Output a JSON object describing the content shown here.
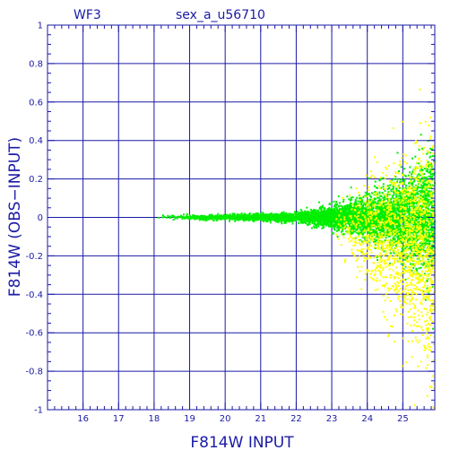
{
  "chart_data": {
    "type": "scatter",
    "panel_label": "WF3",
    "title": "sex_a_u56710",
    "xlabel": "F814W INPUT",
    "ylabel": "F814W (OBS−INPUT)",
    "xlim": [
      15,
      25.9
    ],
    "ylim": [
      -1,
      1
    ],
    "x_ticks": [
      16,
      17,
      18,
      19,
      20,
      21,
      22,
      23,
      24,
      25
    ],
    "y_ticks": [
      1,
      0.8,
      0.6,
      0.4,
      0.2,
      0,
      -0.2,
      -0.4,
      -0.6,
      -0.8,
      -1
    ],
    "grid": true,
    "series": [
      {
        "color": "#00ee00",
        "x_range": [
          18.0,
          25.9
        ],
        "scatter_at": {
          "18": 0.01,
          "20": 0.012,
          "22": 0.02,
          "23": 0.05,
          "24": 0.1,
          "25": 0.18,
          "25.9": 0.3
        }
      },
      {
        "color": "#ffff00",
        "x_range": [
          23.0,
          25.9
        ],
        "scatter_at": {
          "23": 0.08,
          "24": 0.2,
          "25": 0.35,
          "25.9": 0.5
        }
      }
    ],
    "colors": {
      "axis": "#1a1aa6",
      "grid": "#1a1aa6",
      "bright": "#00ee00",
      "faint": "#ffff00"
    }
  }
}
